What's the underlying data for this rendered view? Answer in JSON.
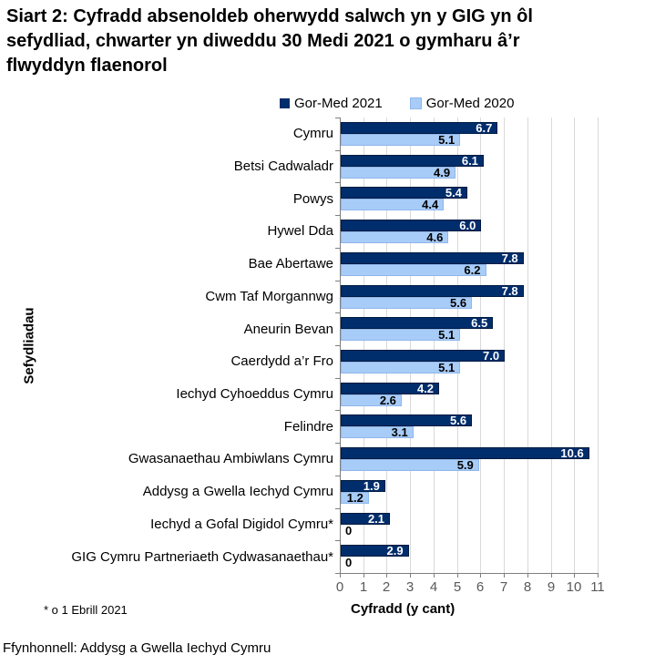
{
  "title_lines": [
    "Siart 2: Cyfradd absenoldeb oherwydd salwch yn y GIG yn ôl",
    "sefydliad, chwarter yn diweddu 30 Medi 2021 o gymharu â’r",
    "flwyddyn flaenorol"
  ],
  "footnote": "* o 1 Ebrill 2021",
  "source": "Ffynhonnell: Addysg a Gwella Iechyd Cymru",
  "colors": {
    "series_2021": "#002d6b",
    "series_2021_border": "#001a40",
    "series_2020": "#a8ccf8",
    "series_2020_border": "#8fb6ea",
    "grid": "#d9d9d9",
    "axis": "#7f7f7f",
    "tick_label": "#595959"
  },
  "chart_data": {
    "type": "bar",
    "orientation": "horizontal",
    "title": "Siart 2: Cyfradd absenoldeb oherwydd salwch yn y GIG yn ôl sefydliad, chwarter yn diweddu 30 Medi 2021 o gymharu â’r flwyddyn flaenorol",
    "categories": [
      "Cymru",
      "Betsi Cadwaladr",
      "Powys",
      "Hywel Dda",
      "Bae Abertawe",
      "Cwm Taf Morgannwg",
      "Aneurin Bevan",
      "Caerdydd a’r Fro",
      "Iechyd Cyhoeddus Cymru",
      "Felindre",
      "Gwasanaethau Ambiwlans Cymru",
      "Addysg a Gwella Iechyd Cymru",
      "Iechyd a Gofal Digidol Cymru*",
      "GIG Cymru Partneriaeth Cydwasanaethau*"
    ],
    "series": [
      {
        "name": "Gor-Med 2021",
        "color": "#002d6b",
        "values": [
          6.7,
          6.1,
          5.4,
          6.0,
          7.8,
          7.8,
          6.5,
          7.0,
          4.2,
          5.6,
          10.6,
          1.9,
          2.1,
          2.9
        ]
      },
      {
        "name": "Gor-Med 2020",
        "color": "#a8ccf8",
        "values": [
          5.1,
          4.9,
          4.4,
          4.6,
          6.2,
          5.6,
          5.1,
          5.1,
          2.6,
          3.1,
          5.9,
          1.2,
          0,
          0
        ]
      }
    ],
    "xlabel": "Cyfradd (y cant)",
    "ylabel": "Sefydliadau",
    "xlim": [
      0,
      11
    ],
    "xticks": [
      0,
      1,
      2,
      3,
      4,
      5,
      6,
      7,
      8,
      9,
      10,
      11
    ],
    "grid": true,
    "legend_position": "top"
  }
}
